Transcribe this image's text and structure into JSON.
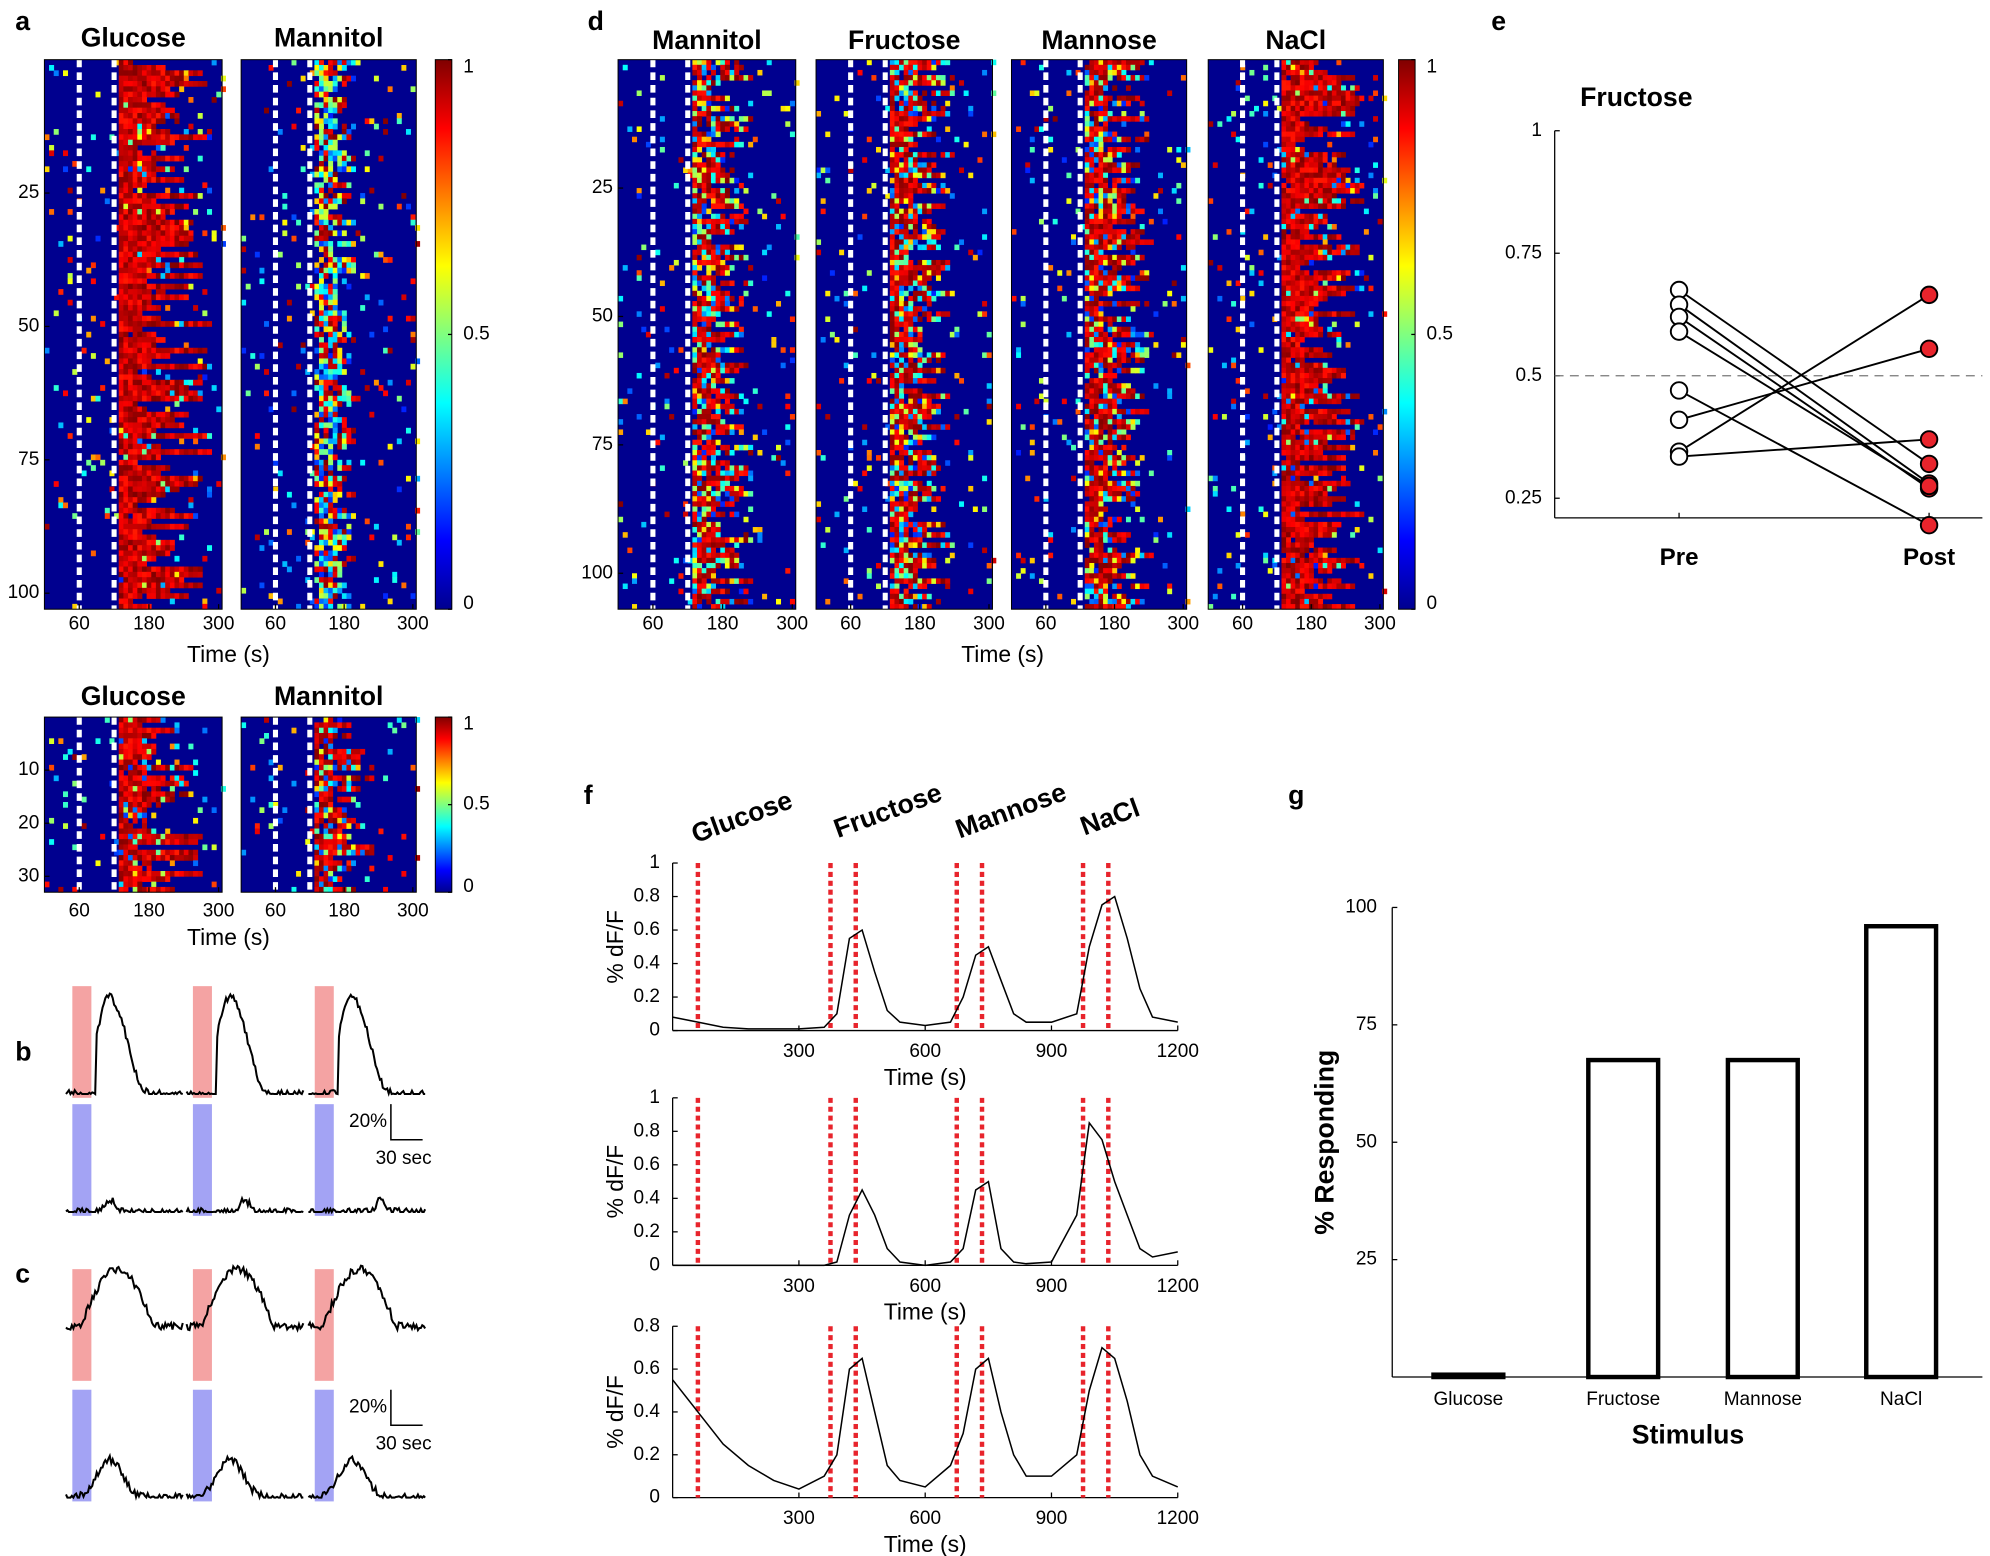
{
  "panel_labels": [
    "a",
    "b",
    "c",
    "d",
    "e",
    "f",
    "g"
  ],
  "chart_data": [
    {
      "type": "heatmap",
      "panels": [
        {
          "title": "Glucose"
        },
        {
          "title": "Mannitol"
        }
      ],
      "xlim": [
        0,
        306
      ],
      "xticks": [
        60,
        180,
        300
      ],
      "ylim": [
        0,
        103
      ],
      "yticks": [
        25,
        50,
        75,
        100
      ],
      "xlabel": "Time (s)",
      "markers": [
        60,
        120
      ],
      "colorbar_lim": [
        0,
        1
      ],
      "colorbar_ticks": [
        0,
        0.5,
        1
      ]
    },
    {
      "type": "heatmap",
      "panels": [
        {
          "title": "Glucose"
        },
        {
          "title": "Mannitol"
        }
      ],
      "xlim": [
        0,
        306
      ],
      "xticks": [
        60,
        180,
        300
      ],
      "ylim": [
        0,
        33
      ],
      "yticks": [
        10,
        20,
        30
      ],
      "xlabel": "Time (s)",
      "markers": [
        60,
        120
      ],
      "colorbar_lim": [
        0,
        1
      ],
      "colorbar_ticks": [
        0,
        0.5,
        1
      ]
    },
    {
      "type": "heatmap",
      "panels": [
        {
          "title": "Mannitol"
        },
        {
          "title": "Fructose"
        },
        {
          "title": "Mannose"
        },
        {
          "title": "NaCl"
        }
      ],
      "xlim": [
        0,
        306
      ],
      "xticks": [
        60,
        180,
        300
      ],
      "ylim": [
        0,
        107
      ],
      "yticks": [
        25,
        50,
        75,
        100
      ],
      "xlabel": "Time (s)",
      "markers": [
        60,
        120
      ],
      "colorbar_lim": [
        0,
        1
      ],
      "colorbar_ticks": [
        0,
        0.5,
        1
      ]
    },
    {
      "type": "traces",
      "scale_labels": [
        "20%",
        "30 sec"
      ],
      "colors": [
        "#f4a3a3",
        "#a3a3f4"
      ]
    },
    {
      "type": "traces",
      "scale_labels": [
        "20%",
        "30 sec"
      ],
      "colors": [
        "#f4a3a3",
        "#a3a3f4"
      ]
    },
    {
      "type": "line",
      "title": "Fructose",
      "categories": [
        "Pre",
        "Post"
      ],
      "category_colors": [
        "#000000",
        "#e8242c"
      ],
      "marker_fills": [
        "#ffffff",
        "#e8242c"
      ],
      "ylim": [
        0.21,
        1
      ],
      "yticks": [
        0.25,
        0.5,
        0.75,
        1
      ],
      "reference_line": 0.5,
      "series": [
        {
          "values": [
            0.675,
            0.32
          ]
        },
        {
          "values": [
            0.645,
            0.28
          ]
        },
        {
          "values": [
            0.62,
            0.27
          ]
        },
        {
          "values": [
            0.59,
            0.275
          ]
        },
        {
          "values": [
            0.47,
            0.195
          ]
        },
        {
          "values": [
            0.41,
            0.555
          ]
        },
        {
          "values": [
            0.345,
            0.665
          ]
        },
        {
          "values": [
            0.335,
            0.37
          ]
        }
      ]
    },
    {
      "type": "line",
      "x": [
        0,
        60,
        120,
        180,
        240,
        300,
        360,
        390,
        420,
        450,
        480,
        510,
        540,
        600,
        660,
        690,
        720,
        750,
        780,
        810,
        840,
        900,
        960,
        990,
        1020,
        1050,
        1080,
        1110,
        1140,
        1200
      ],
      "series": [
        {
          "color": "#000000",
          "values": [
            0.08,
            0.05,
            0.02,
            0.01,
            0.01,
            0.01,
            0.02,
            0.1,
            0.55,
            0.6,
            0.35,
            0.12,
            0.05,
            0.03,
            0.05,
            0.2,
            0.45,
            0.5,
            0.3,
            0.1,
            0.05,
            0.05,
            0.1,
            0.5,
            0.75,
            0.8,
            0.55,
            0.25,
            0.08,
            0.05
          ]
        }
      ],
      "xlim": [
        0,
        1200
      ],
      "xticks": [
        300,
        600,
        900,
        1200
      ],
      "ylim": [
        0,
        1
      ],
      "yticks": [
        0,
        0.2,
        0.4,
        0.6,
        0.8,
        1
      ],
      "xlabel": "Time (s)",
      "ylabel": "% dF/F",
      "stimuli": [
        60,
        375,
        435,
        675,
        735,
        975,
        1035
      ],
      "stimulus_color": "#e8242c",
      "stimulus_labels": [
        "Glucose",
        "Fructose",
        "Mannose",
        "NaCl"
      ]
    },
    {
      "type": "line",
      "x": [
        0,
        60,
        120,
        180,
        240,
        300,
        360,
        390,
        420,
        450,
        480,
        510,
        540,
        600,
        660,
        690,
        720,
        750,
        780,
        810,
        840,
        900,
        960,
        990,
        1020,
        1050,
        1080,
        1110,
        1140,
        1200
      ],
      "series": [
        {
          "color": "#000000",
          "values": [
            0,
            0,
            0,
            0,
            0,
            0,
            0,
            0.02,
            0.3,
            0.45,
            0.3,
            0.1,
            0.02,
            0,
            0.02,
            0.1,
            0.45,
            0.5,
            0.1,
            0.02,
            0.01,
            0.02,
            0.3,
            0.85,
            0.75,
            0.5,
            0.3,
            0.1,
            0.05,
            0.08
          ]
        }
      ],
      "xlim": [
        0,
        1200
      ],
      "xticks": [
        300,
        600,
        900,
        1200
      ],
      "ylim": [
        0,
        1
      ],
      "yticks": [
        0,
        0.2,
        0.4,
        0.6,
        0.8,
        1
      ],
      "xlabel": "Time (s)",
      "ylabel": "% dF/F",
      "stimuli": [
        60,
        375,
        435,
        675,
        735,
        975,
        1035
      ],
      "stimulus_color": "#e8242c"
    },
    {
      "type": "line",
      "x": [
        0,
        60,
        120,
        180,
        240,
        300,
        360,
        390,
        420,
        450,
        480,
        510,
        540,
        600,
        660,
        690,
        720,
        750,
        780,
        810,
        840,
        900,
        960,
        990,
        1020,
        1050,
        1080,
        1110,
        1140,
        1200
      ],
      "series": [
        {
          "color": "#000000",
          "values": [
            0.55,
            0.4,
            0.25,
            0.15,
            0.08,
            0.04,
            0.1,
            0.2,
            0.6,
            0.65,
            0.4,
            0.15,
            0.08,
            0.05,
            0.15,
            0.3,
            0.6,
            0.65,
            0.4,
            0.2,
            0.1,
            0.1,
            0.2,
            0.5,
            0.7,
            0.65,
            0.45,
            0.2,
            0.1,
            0.05
          ]
        }
      ],
      "xlim": [
        0,
        1200
      ],
      "xticks": [
        300,
        600,
        900,
        1200
      ],
      "ylim": [
        0,
        0.8
      ],
      "yticks": [
        0,
        0.2,
        0.4,
        0.6,
        0.8
      ],
      "xlabel": "Time (s)",
      "ylabel": "% dF/F",
      "stimuli": [
        60,
        375,
        435,
        675,
        735,
        975,
        1035
      ],
      "stimulus_color": "#e8242c"
    },
    {
      "type": "bar",
      "categories": [
        "Glucose",
        "Fructose",
        "Mannose",
        "NaCl"
      ],
      "values": [
        0.5,
        67.5,
        67.5,
        96
      ],
      "ylim": [
        0,
        100
      ],
      "yticks": [
        25,
        50,
        75,
        100
      ],
      "color": "#ffffff",
      "edgecolor": "#000000",
      "xlabel": "Stimulus",
      "ylabel": "% Responding"
    }
  ]
}
